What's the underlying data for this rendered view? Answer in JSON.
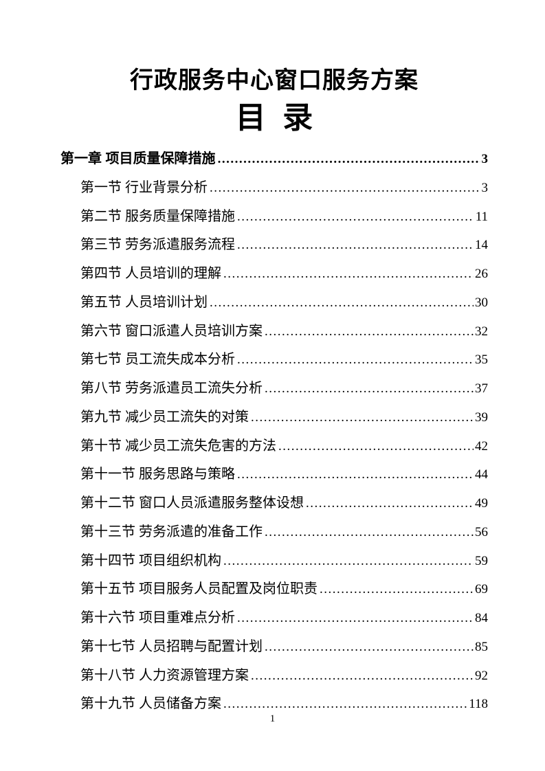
{
  "page": {
    "doc_title": "行政服务中心窗口服务方案",
    "toc_heading": "目  录",
    "page_number": "1"
  },
  "toc": {
    "chapter": {
      "label": "第一章 项目质量保障措施",
      "page": "3"
    },
    "sections": [
      {
        "label": "第一节 行业背景分析",
        "page": "3"
      },
      {
        "label": "第二节 服务质量保障措施",
        "page": "11"
      },
      {
        "label": "第三节 劳务派遣服务流程",
        "page": "14"
      },
      {
        "label": "第四节 人员培训的理解",
        "page": "26"
      },
      {
        "label": "第五节 人员培训计划",
        "page": "30"
      },
      {
        "label": "第六节 窗口派遣人员培训方案",
        "page": "32"
      },
      {
        "label": "第七节 员工流失成本分析",
        "page": "35"
      },
      {
        "label": "第八节 劳务派遣员工流失分析",
        "page": "37"
      },
      {
        "label": "第九节 减少员工流失的对策",
        "page": "39"
      },
      {
        "label": "第十节 减少员工流失危害的方法",
        "page": "42"
      },
      {
        "label": "第十一节 服务思路与策略",
        "page": "44"
      },
      {
        "label": "第十二节 窗口人员派遣服务整体设想",
        "page": "49"
      },
      {
        "label": "第十三节 劳务派遣的准备工作",
        "page": "56"
      },
      {
        "label": "第十四节 项目组织机构",
        "page": "59"
      },
      {
        "label": "第十五节 项目服务人员配置及岗位职责",
        "page": "69"
      },
      {
        "label": "第十六节 项目重难点分析",
        "page": "84"
      },
      {
        "label": "第十七节 人员招聘与配置计划",
        "page": "85"
      },
      {
        "label": "第十八节 人力资源管理方案",
        "page": "92"
      },
      {
        "label": "第十九节 人员储备方案",
        "page": "118"
      }
    ]
  }
}
